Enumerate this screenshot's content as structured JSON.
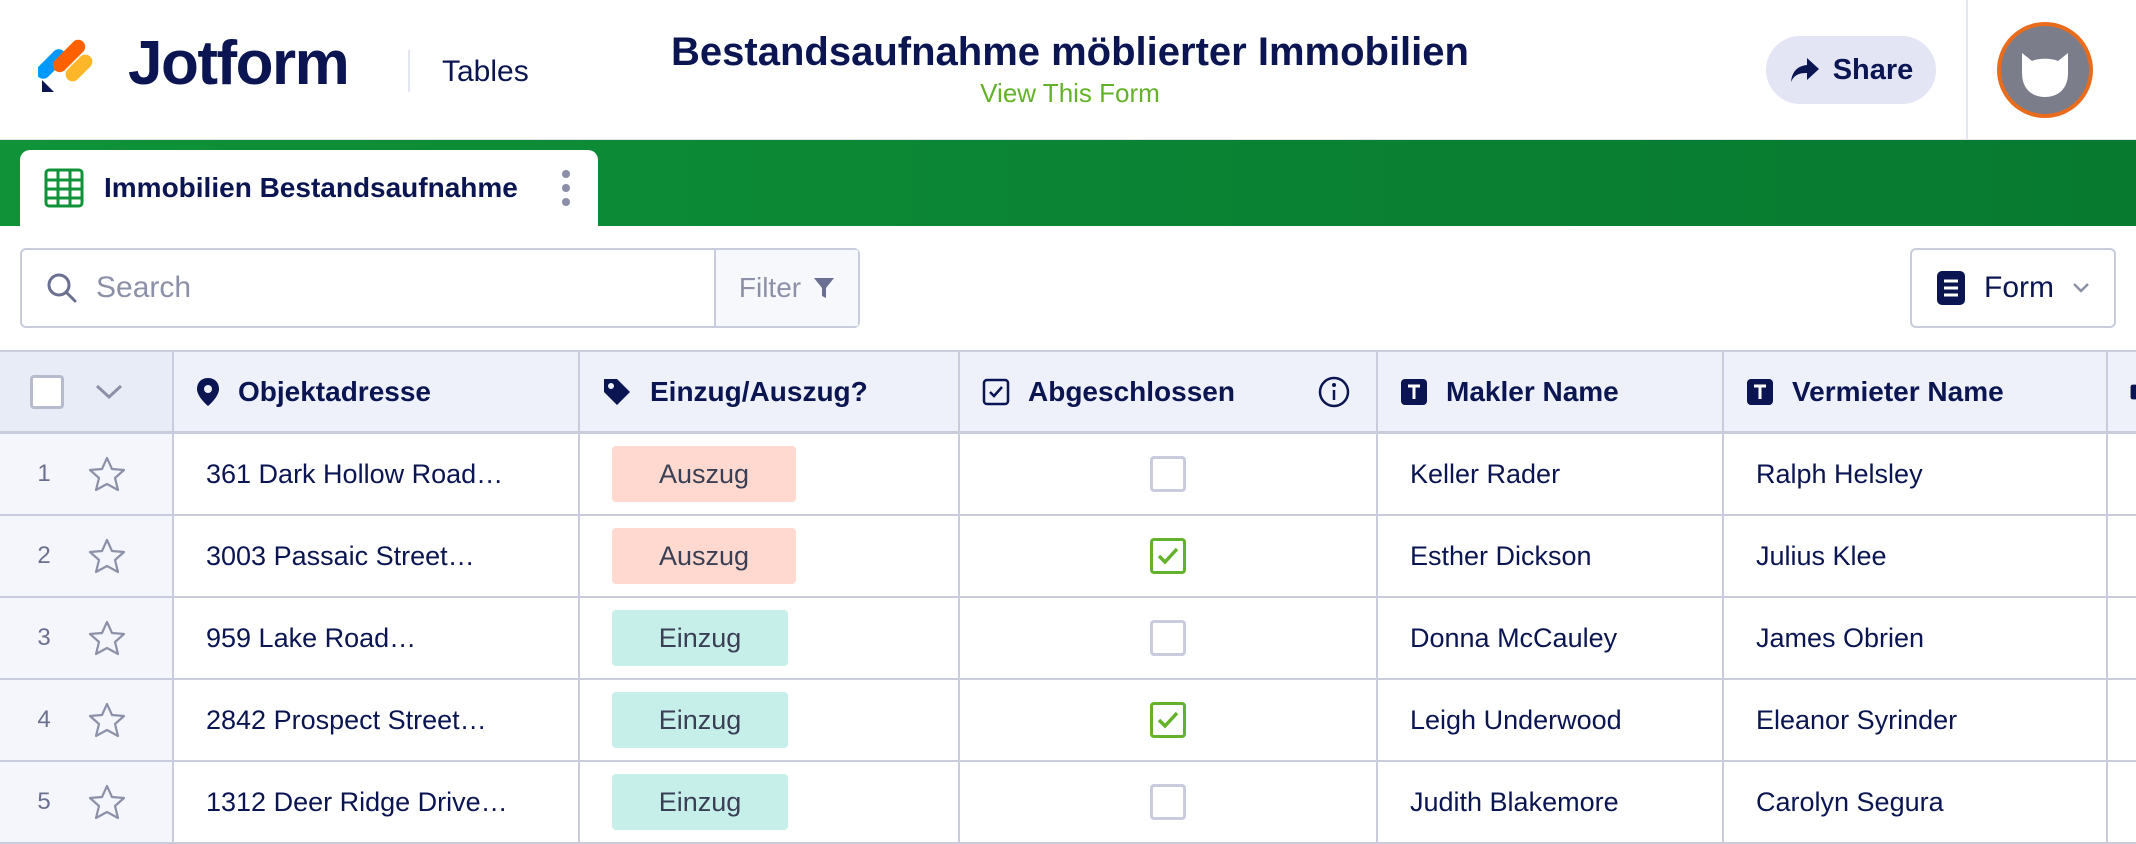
{
  "header": {
    "brand": "Jotform",
    "product": "Tables",
    "title": "Bestandsaufnahme möblierter Immobilien",
    "view_form_link": "View This Form",
    "share_label": "Share"
  },
  "tab": {
    "label": "Immobilien Bestandsaufnahme"
  },
  "toolbar": {
    "search_placeholder": "Search",
    "filter_label": "Filter",
    "form_label": "Form"
  },
  "columns": {
    "address": "Objektadresse",
    "move": "Einzug/Auszug?",
    "done": "Abgeschlossen",
    "agent": "Makler Name",
    "landlord": "Vermieter Name"
  },
  "rows": [
    {
      "num": "1",
      "address": "361 Dark Hollow Road…",
      "move": "Auszug",
      "move_type": "out",
      "done": false,
      "agent": "Keller Rader",
      "landlord": "Ralph Helsley"
    },
    {
      "num": "2",
      "address": "3003 Passaic Street…",
      "move": "Auszug",
      "move_type": "out",
      "done": true,
      "agent": "Esther Dickson",
      "landlord": "Julius Klee"
    },
    {
      "num": "3",
      "address": "959 Lake Road…",
      "move": "Einzug",
      "move_type": "in",
      "done": false,
      "agent": "Donna McCauley",
      "landlord": "James Obrien"
    },
    {
      "num": "4",
      "address": "2842 Prospect Street…",
      "move": "Einzug",
      "move_type": "in",
      "done": true,
      "agent": "Leigh Underwood",
      "landlord": "Eleanor Syrinder"
    },
    {
      "num": "5",
      "address": "1312 Deer Ridge Drive…",
      "move": "Einzug",
      "move_type": "in",
      "done": false,
      "agent": "Judith Blakemore",
      "landlord": "Carolyn Segura"
    }
  ],
  "colors": {
    "accent_green": "#0a8233",
    "link_green": "#64b22b",
    "navy": "#0a1551",
    "pill_out": "#ffd9d0",
    "pill_in": "#c6efe9"
  }
}
